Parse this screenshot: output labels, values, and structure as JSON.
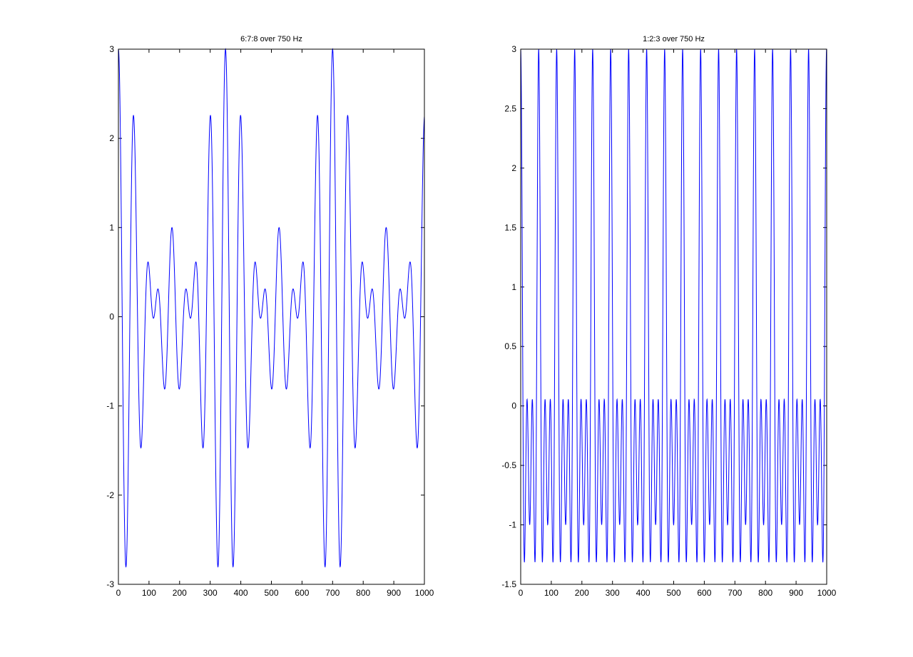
{
  "figure": {
    "background": "#ffffff",
    "line_color": "#0000ff",
    "axis_color": "#000000"
  },
  "chart_data": [
    {
      "type": "line",
      "title": "6:7:8 over 750 Hz",
      "xlabel": "",
      "ylabel": "",
      "xlim": [
        0,
        1000
      ],
      "ylim": [
        -3,
        3
      ],
      "xticks": [
        0,
        100,
        200,
        300,
        400,
        500,
        600,
        700,
        800,
        900,
        1000
      ],
      "yticks": [
        -3,
        -2,
        -1,
        0,
        1,
        2,
        3
      ],
      "xtick_labels": [
        "0",
        "100",
        "200",
        "300",
        "400",
        "500",
        "600",
        "700",
        "800",
        "900",
        "1000"
      ],
      "ytick_labels": [
        "-3",
        "-2",
        "-1",
        "0",
        "1",
        "2",
        "3"
      ],
      "grid": false,
      "legend": "none",
      "series": [
        {
          "formula": "cos(2π·6·x/M) + cos(2π·7·x/M) + cos(2π·8·x/M)",
          "harmonics": [
            6,
            7,
            8
          ],
          "samples_per_cycle": 350,
          "x_range": [
            0,
            1000
          ],
          "y_clip": [
            -3,
            3
          ]
        }
      ]
    },
    {
      "type": "line",
      "title": "1:2:3 over 750 Hz",
      "xlabel": "",
      "ylabel": "",
      "xlim": [
        0,
        1000
      ],
      "ylim": [
        -1.5,
        3
      ],
      "xticks": [
        0,
        100,
        200,
        300,
        400,
        500,
        600,
        700,
        800,
        900,
        1000
      ],
      "yticks": [
        -1.5,
        -1,
        -0.5,
        0,
        0.5,
        1,
        1.5,
        2,
        2.5,
        3
      ],
      "xtick_labels": [
        "0",
        "100",
        "200",
        "300",
        "400",
        "500",
        "600",
        "700",
        "800",
        "900",
        "1000"
      ],
      "ytick_labels": [
        "-1.5",
        "-1",
        "-0.5",
        "0",
        "0.5",
        "1",
        "1.5",
        "2",
        "2.5",
        "3"
      ],
      "grid": false,
      "legend": "none",
      "series": [
        {
          "formula": "cos(2π·1·x/M) + cos(2π·2·x/M) + cos(2π·3·x/M)",
          "harmonics": [
            1,
            2,
            3
          ],
          "samples_per_cycle": 58.8,
          "x_range": [
            0,
            1000
          ],
          "y_clip": [
            -1.5,
            3
          ]
        }
      ]
    }
  ]
}
